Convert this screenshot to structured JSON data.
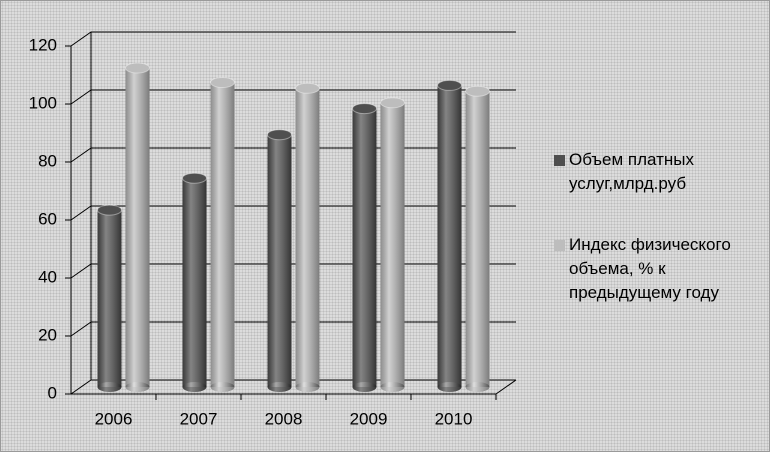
{
  "chart_data": {
    "type": "bar",
    "categories": [
      "2006",
      "2007",
      "2008",
      "2009",
      "2010"
    ],
    "series": [
      {
        "name": "Объем платных услуг,млрд.руб",
        "color": "#4f4f4f",
        "values": [
          61,
          72,
          87,
          96,
          104
        ]
      },
      {
        "name": "Индекс физического объема, % к предыдущему году",
        "color": "#bdbdbd",
        "values": [
          110,
          105,
          103,
          98,
          102
        ]
      }
    ],
    "ylim": [
      0,
      120
    ],
    "yticks": [
      0,
      20,
      40,
      60,
      80,
      100,
      120
    ],
    "grid": true,
    "legend": "right"
  }
}
